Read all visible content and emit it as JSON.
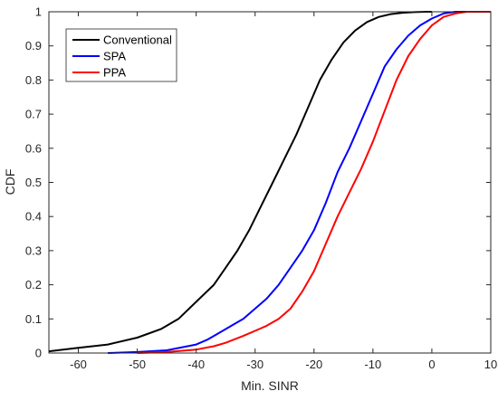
{
  "chart_data": {
    "type": "line",
    "title": "",
    "xlabel": "Min. SINR",
    "ylabel": "CDF",
    "xlim": [
      -65,
      10
    ],
    "ylim": [
      0,
      1
    ],
    "xticks": [
      -60,
      -50,
      -40,
      -30,
      -20,
      -10,
      0,
      10
    ],
    "yticks": [
      0,
      0.1,
      0.2,
      0.3,
      0.4,
      0.5,
      0.6,
      0.7,
      0.8,
      0.9,
      1
    ],
    "grid": false,
    "legend_position": "top-left",
    "series": [
      {
        "name": "Conventional",
        "color": "#000000",
        "x": [
          -65,
          -60,
          -55,
          -50,
          -46,
          -43,
          -40,
          -37,
          -35,
          -33,
          -31,
          -29,
          -27,
          -25,
          -23,
          -21,
          -19,
          -17,
          -15,
          -13,
          -11,
          -9,
          -7,
          -5,
          -3,
          -1,
          0
        ],
        "y": [
          0.005,
          0.015,
          0.025,
          0.045,
          0.07,
          0.1,
          0.15,
          0.2,
          0.25,
          0.3,
          0.36,
          0.43,
          0.5,
          0.57,
          0.64,
          0.72,
          0.8,
          0.86,
          0.91,
          0.945,
          0.97,
          0.985,
          0.993,
          0.997,
          0.999,
          1,
          1
        ]
      },
      {
        "name": "SPA",
        "color": "#0000ff",
        "x": [
          -55,
          -50,
          -45,
          -40,
          -38,
          -36,
          -34,
          -32,
          -30,
          -28,
          -26,
          -24,
          -22,
          -20,
          -18,
          -16,
          -14,
          -12,
          -10,
          -8,
          -6,
          -4,
          -2,
          0,
          2,
          4,
          6,
          8,
          10
        ],
        "y": [
          0,
          0.003,
          0.008,
          0.025,
          0.04,
          0.06,
          0.08,
          0.1,
          0.13,
          0.16,
          0.2,
          0.25,
          0.3,
          0.36,
          0.44,
          0.53,
          0.6,
          0.68,
          0.76,
          0.84,
          0.89,
          0.93,
          0.96,
          0.98,
          0.995,
          1,
          1,
          1,
          1
        ]
      },
      {
        "name": "PPA",
        "color": "#ff0000",
        "x": [
          -50,
          -45,
          -40,
          -37,
          -35,
          -32,
          -30,
          -28,
          -26,
          -24,
          -22,
          -20,
          -18,
          -16,
          -14,
          -12,
          -10,
          -8,
          -6,
          -4,
          -2,
          0,
          2,
          4,
          6,
          8,
          10
        ],
        "y": [
          0,
          0.003,
          0.01,
          0.02,
          0.03,
          0.05,
          0.065,
          0.08,
          0.1,
          0.13,
          0.18,
          0.24,
          0.32,
          0.4,
          0.47,
          0.54,
          0.62,
          0.71,
          0.8,
          0.87,
          0.92,
          0.96,
          0.985,
          0.995,
          1,
          1,
          1
        ]
      }
    ]
  }
}
